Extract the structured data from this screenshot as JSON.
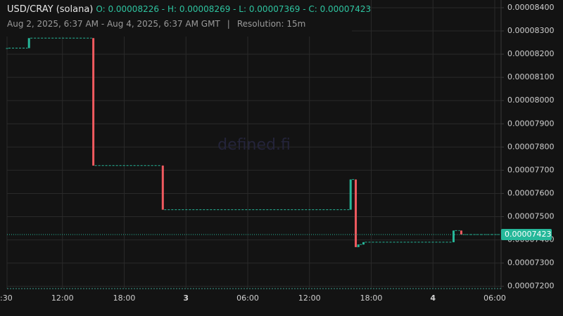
{
  "chart_data": {
    "type": "candlestick",
    "title": "USD/CRAY (solana)",
    "ohlc_text": "O: 0.00008226 - H: 0.00008269 - L: 0.00007369 - C: 0.00007423",
    "subtitle": "Aug 2, 2025, 6:37 AM - Aug 4, 2025, 6:37 AM GMT",
    "separator": "|",
    "resolution": "Resolution: 15m",
    "watermark": "defined.fi",
    "up_color": "#26b89a",
    "down_color": "#ef5a5f",
    "grid": true,
    "x": [
      "2025-08-02T06:37",
      "2025-08-02T08:45",
      "2025-08-02T15:00",
      "2025-08-02T21:45",
      "2025-08-03T16:00",
      "2025-08-03T16:30",
      "2025-08-03T16:45",
      "2025-08-03T17:15",
      "2025-08-04T02:00",
      "2025-08-04T02:45"
    ],
    "open": [
      8.226e-05,
      8.226e-05,
      8.269e-05,
      7.72e-05,
      7.53e-05,
      7.66e-05,
      7.369e-05,
      7.38e-05,
      7.39e-05,
      7.44e-05
    ],
    "high": [
      8.226e-05,
      8.269e-05,
      8.269e-05,
      7.72e-05,
      7.66e-05,
      7.66e-05,
      7.38e-05,
      7.39e-05,
      7.44e-05,
      7.44e-05
    ],
    "low": [
      8.226e-05,
      8.226e-05,
      7.72e-05,
      7.53e-05,
      7.53e-05,
      7.369e-05,
      7.369e-05,
      7.38e-05,
      7.39e-05,
      7.423e-05
    ],
    "close": [
      8.226e-05,
      8.269e-05,
      7.72e-05,
      7.53e-05,
      7.66e-05,
      7.369e-05,
      7.38e-05,
      7.39e-05,
      7.44e-05,
      7.423e-05
    ],
    "last_price": {
      "value": 7.423e-05,
      "label": "0.00007423"
    },
    "xlim": [
      "2025-08-02T06:37",
      "2025-08-04T06:37"
    ],
    "xticks": [
      {
        "value": "2025-08-02T06:37",
        "label": ":30"
      },
      {
        "value": "2025-08-02T12:00",
        "label": "12:00"
      },
      {
        "value": "2025-08-02T18:00",
        "label": "18:00"
      },
      {
        "value": "2025-08-03T00:00",
        "label": "3"
      },
      {
        "value": "2025-08-03T06:00",
        "label": "06:00"
      },
      {
        "value": "2025-08-03T12:00",
        "label": "12:00"
      },
      {
        "value": "2025-08-03T18:00",
        "label": "18:00"
      },
      {
        "value": "2025-08-04T00:00",
        "label": "4"
      },
      {
        "value": "2025-08-04T06:00",
        "label": "06:00"
      }
    ],
    "ylim": [
      7.19e-05,
      8.403e-05
    ],
    "yticks": [
      {
        "value": 7.2e-05,
        "label": "0.00007200"
      },
      {
        "value": 7.3e-05,
        "label": "0.00007300"
      },
      {
        "value": 7.4e-05,
        "label": "0.00007400"
      },
      {
        "value": 7.5e-05,
        "label": "0.00007500"
      },
      {
        "value": 7.6e-05,
        "label": "0.00007600"
      },
      {
        "value": 7.7e-05,
        "label": "0.00007700"
      },
      {
        "value": 7.8e-05,
        "label": "0.00007800"
      },
      {
        "value": 7.9e-05,
        "label": "0.00007900"
      },
      {
        "value": 8e-05,
        "label": "0.00008000"
      },
      {
        "value": 8.1e-05,
        "label": "0.00008100"
      },
      {
        "value": 8.2e-05,
        "label": "0.00008200"
      },
      {
        "value": 8.3e-05,
        "label": "0.00008300"
      },
      {
        "value": 8.4e-05,
        "label": "0.00008400"
      }
    ]
  }
}
